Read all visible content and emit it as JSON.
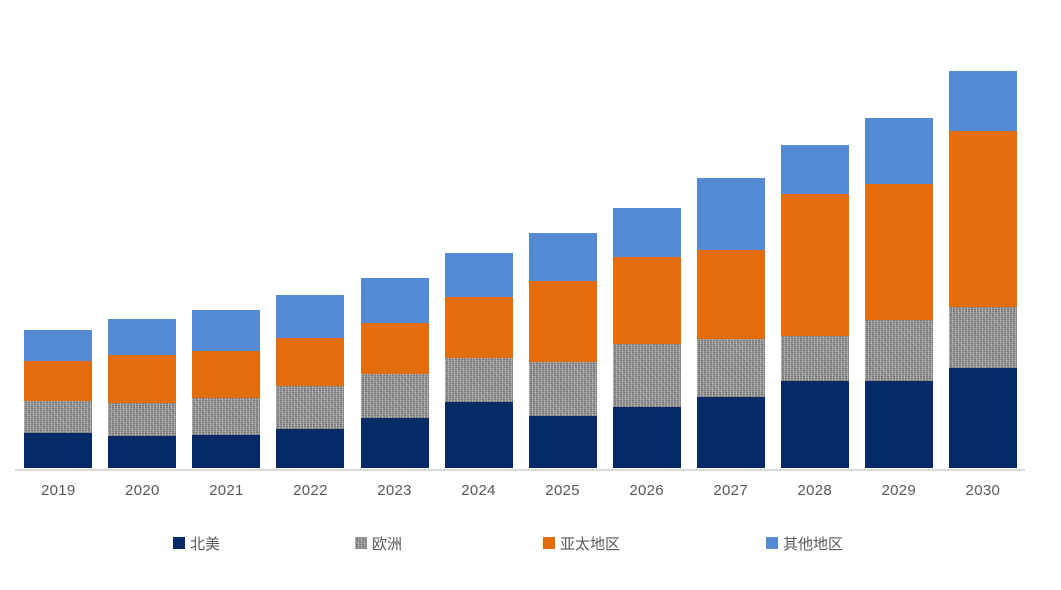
{
  "chart_data": {
    "type": "bar",
    "stacked": true,
    "title": "",
    "xlabel": "",
    "ylabel": "",
    "grid": false,
    "legend_position": "bottom",
    "ylim": [
      0,
      430
    ],
    "axis_line_color": "#d9d9d9",
    "tick_label_color": "#595959",
    "categories": [
      "2019",
      "2020",
      "2021",
      "2022",
      "2023",
      "2024",
      "2025",
      "2026",
      "2027",
      "2028",
      "2029",
      "2030"
    ],
    "series": [
      {
        "key": "north-america",
        "name": "北美",
        "color": "#052a66",
        "fill": "solid",
        "values": [
          35,
          32,
          33,
          39,
          50,
          66,
          52,
          61,
          71,
          87,
          87,
          100
        ]
      },
      {
        "key": "europe",
        "name": "欧洲",
        "color": "#8f8f8f",
        "fill": "textured",
        "values": [
          32,
          33,
          37,
          43,
          44,
          44,
          54,
          63,
          58,
          45,
          61,
          61
        ]
      },
      {
        "key": "asia-pacific",
        "name": "亚太地区",
        "color": "#e36d0d",
        "fill": "solid",
        "values": [
          40,
          48,
          47,
          48,
          51,
          61,
          81,
          87,
          89,
          142,
          136,
          176
        ]
      },
      {
        "key": "other-regions",
        "name": "其他地区",
        "color": "#5489d3",
        "fill": "solid",
        "values": [
          31,
          36,
          41,
          43,
          45,
          44,
          48,
          49,
          72,
          49,
          66,
          60
        ]
      }
    ]
  },
  "legend": {
    "items": [
      {
        "key": "north-america",
        "label": "北美"
      },
      {
        "key": "europe",
        "label": "欧洲"
      },
      {
        "key": "asia-pacific",
        "label": "亚太地区"
      },
      {
        "key": "other-regions",
        "label": "其他地区"
      }
    ]
  }
}
